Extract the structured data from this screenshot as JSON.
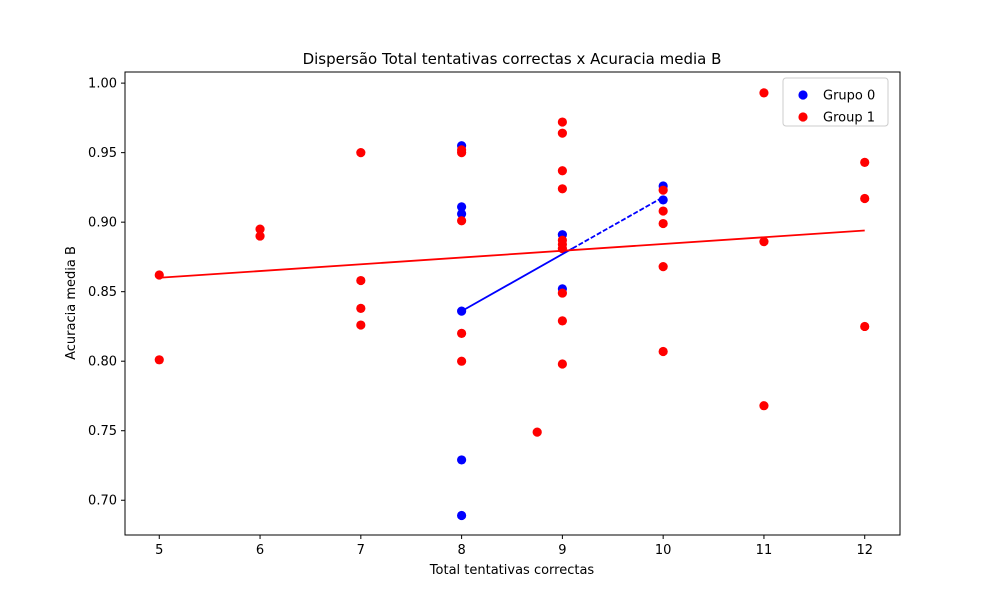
{
  "chart_data": {
    "type": "scatter",
    "title": "Dispersão Total tentativas correctas x Acuracia media B",
    "xlabel": "Total tentativas correctas",
    "ylabel": "Acuracia media B",
    "xlim": [
      4.66,
      12.35
    ],
    "ylim": [
      0.675,
      1.008
    ],
    "xticks": [
      5,
      6,
      7,
      8,
      9,
      10,
      11,
      12
    ],
    "yticks": [
      0.7,
      0.75,
      0.8,
      0.85,
      0.9,
      0.95,
      1.0
    ],
    "ytick_labels": [
      "0.70",
      "0.75",
      "0.80",
      "0.85",
      "0.90",
      "0.95",
      "1.00"
    ],
    "legend_position": "top-right",
    "grid": false,
    "series": [
      {
        "name": "Grupo 0",
        "color": "#0000ff",
        "points": [
          [
            8,
            0.955
          ],
          [
            8,
            0.911
          ],
          [
            8,
            0.906
          ],
          [
            8,
            0.836
          ],
          [
            8,
            0.729
          ],
          [
            8,
            0.689
          ],
          [
            9,
            0.891
          ],
          [
            9,
            0.852
          ],
          [
            10,
            0.926
          ],
          [
            10,
            0.916
          ]
        ],
        "trend": {
          "style": "solid-dashed",
          "x": [
            8,
            10
          ],
          "y": [
            0.836,
            0.918
          ]
        }
      },
      {
        "name": "Group 1",
        "color": "#ff0000",
        "points": [
          [
            5,
            0.862
          ],
          [
            5,
            0.801
          ],
          [
            6,
            0.895
          ],
          [
            6,
            0.89
          ],
          [
            7,
            0.95
          ],
          [
            7,
            0.858
          ],
          [
            7,
            0.838
          ],
          [
            7,
            0.826
          ],
          [
            8,
            0.952
          ],
          [
            8,
            0.95
          ],
          [
            8,
            0.901
          ],
          [
            8,
            0.82
          ],
          [
            8,
            0.8
          ],
          [
            8.75,
            0.749
          ],
          [
            9,
            0.972
          ],
          [
            9,
            0.964
          ],
          [
            9,
            0.937
          ],
          [
            9,
            0.924
          ],
          [
            9,
            0.887
          ],
          [
            9,
            0.884
          ],
          [
            9,
            0.881
          ],
          [
            9,
            0.849
          ],
          [
            9,
            0.829
          ],
          [
            9,
            0.798
          ],
          [
            10,
            0.923
          ],
          [
            10,
            0.908
          ],
          [
            10,
            0.899
          ],
          [
            10,
            0.868
          ],
          [
            10,
            0.807
          ],
          [
            11,
            0.993
          ],
          [
            11,
            0.886
          ],
          [
            11,
            0.768
          ],
          [
            12,
            0.943
          ],
          [
            12,
            0.917
          ],
          [
            12,
            0.825
          ]
        ],
        "trend": {
          "style": "solid",
          "x": [
            5,
            12
          ],
          "y": [
            0.86,
            0.894
          ]
        }
      }
    ]
  }
}
